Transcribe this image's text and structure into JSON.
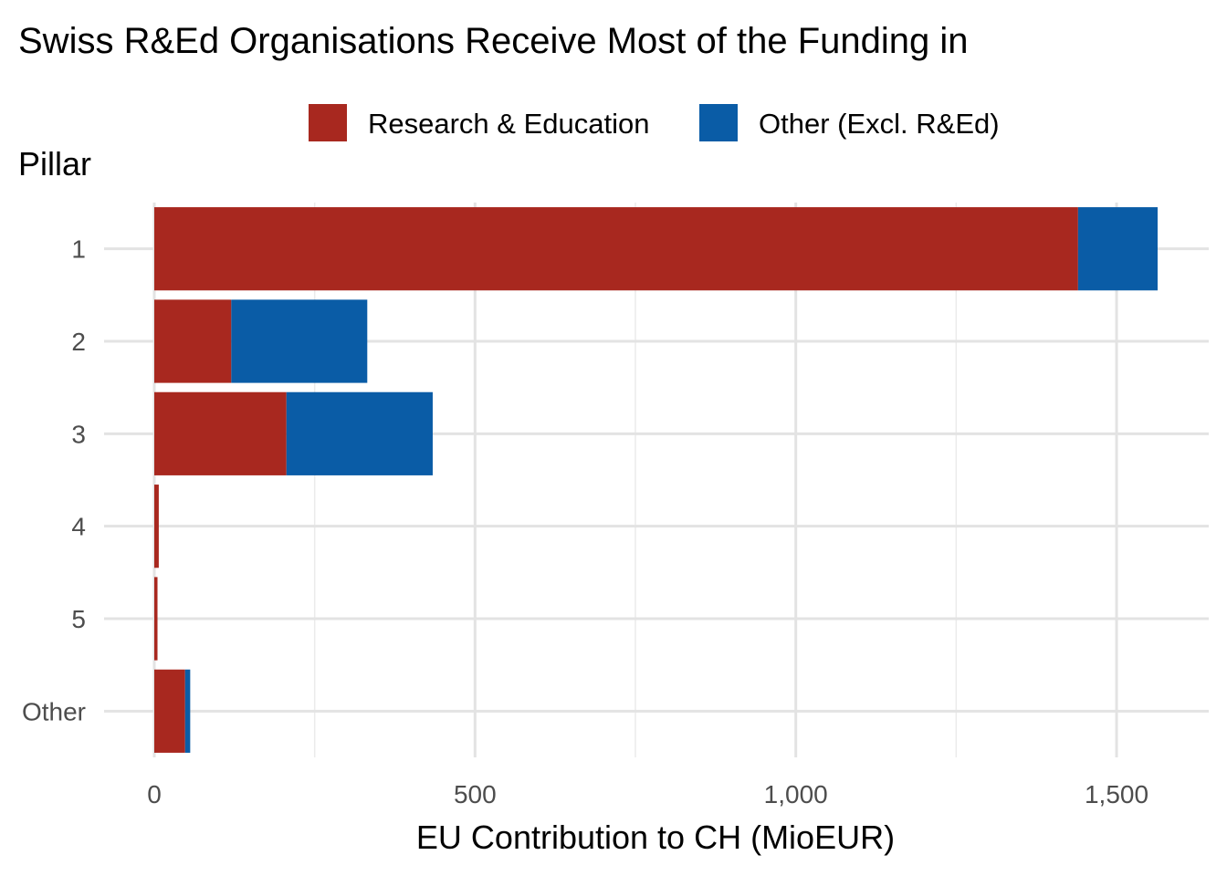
{
  "chart_data": {
    "type": "bar",
    "orientation": "horizontal",
    "stacked": true,
    "title": "Swiss R&Ed Organisations Receive Most of the Funding in",
    "y_axis_title": "Pillar",
    "xlabel": "EU Contribution to CH (MioEUR)",
    "categories": [
      "1",
      "2",
      "3",
      "4",
      "5",
      "Other"
    ],
    "series": [
      {
        "name": "Research & Education",
        "color": "#A8281F",
        "values": [
          1440,
          120,
          206,
          7,
          5,
          48
        ]
      },
      {
        "name": "Other (Excl. R&Ed)",
        "color": "#0A5CA6",
        "values": [
          124,
          212,
          228,
          0,
          0,
          8
        ]
      }
    ],
    "xlim": [
      -10,
      1640
    ],
    "x_ticks": [
      0,
      500,
      1000,
      1500
    ],
    "x_tick_labels": [
      "0",
      "500",
      "1,000",
      "1,500"
    ],
    "x_minor_ticks": [
      250,
      750,
      1250
    ],
    "grid": true,
    "legend_position": "top"
  }
}
